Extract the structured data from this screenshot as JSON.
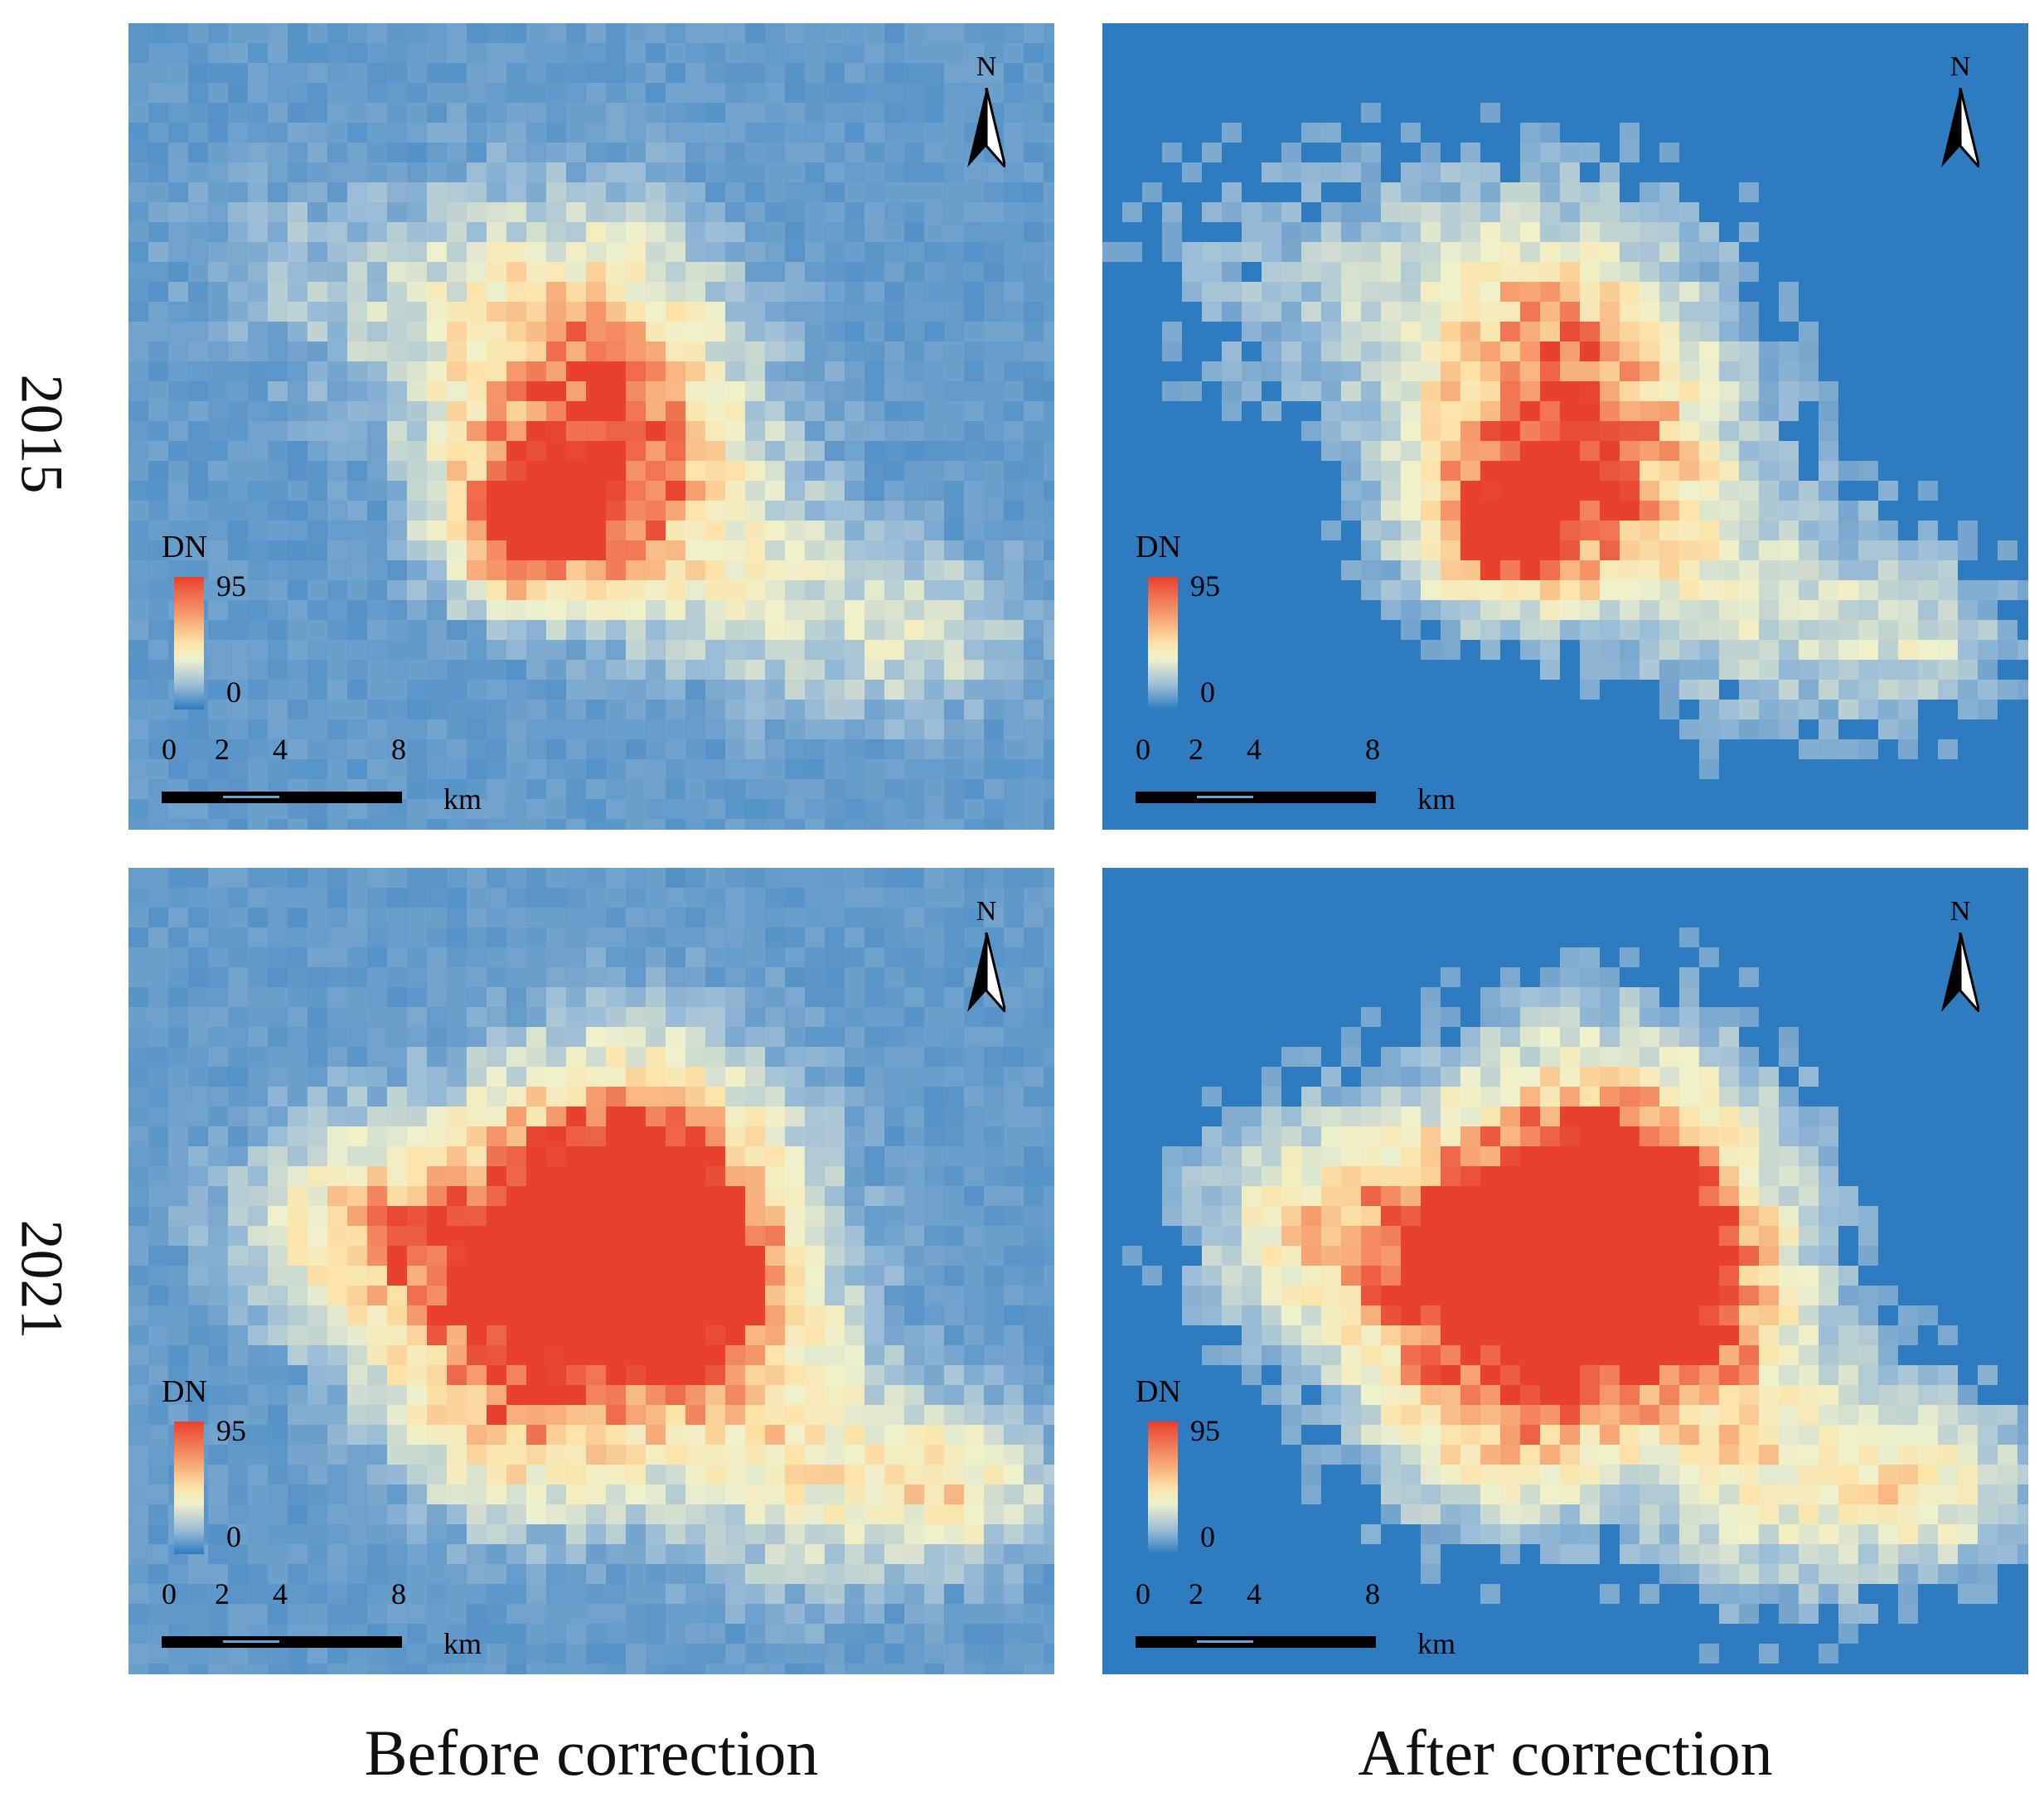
{
  "rows": [
    {
      "label": "2015"
    },
    {
      "label": "2021"
    }
  ],
  "columns": [
    {
      "label": "Before correction"
    },
    {
      "label": "After correction"
    }
  ],
  "panels": [
    {
      "id": "p1",
      "year": "2015",
      "version": "before"
    },
    {
      "id": "p2",
      "year": "2015",
      "version": "after"
    },
    {
      "id": "p3",
      "year": "2021",
      "version": "before"
    },
    {
      "id": "p4",
      "year": "2021",
      "version": "after"
    }
  ],
  "legend": {
    "title": "DN",
    "max": "95",
    "min": "0"
  },
  "scale_bar": {
    "ticks": [
      "0",
      "2",
      "4",
      "8"
    ],
    "unit": "km"
  },
  "north_arrow": {
    "letter": "N"
  },
  "colors": {
    "water_background": "#2e7bbf",
    "low": "#9bbcd6",
    "mid": "#f6f3c0",
    "high": "#e8412e"
  }
}
